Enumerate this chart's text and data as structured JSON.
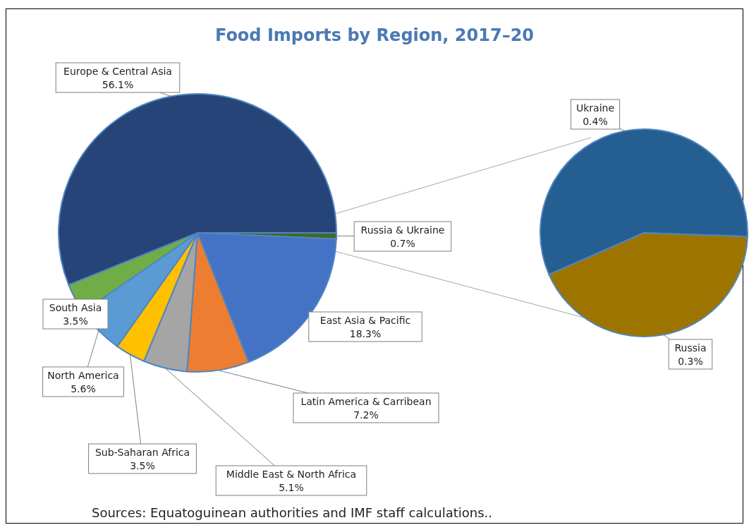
{
  "chart_data": [
    {
      "type": "pie",
      "title": "Food Imports by Region, 2017–20",
      "categories": [
        "Russia & Ukraine",
        "East Asia & Pacific",
        "Latin America & Carribean",
        "Middle East & North Africa",
        "Sub-Saharan Africa",
        "North America",
        "South Asia",
        "Europe & Central Asia"
      ],
      "values": [
        0.7,
        18.3,
        7.2,
        5.1,
        3.5,
        5.6,
        3.5,
        56.1
      ],
      "colors": [
        "#43682b",
        "#4472c4",
        "#ed7d31",
        "#a5a5a5",
        "#ffc000",
        "#5b9bd5",
        "#70ad47",
        "#264478"
      ],
      "value_labels": [
        "0.7%",
        "18.3%",
        "7.2%",
        "5.1%",
        "3.5%",
        "5.6%",
        "3.5%",
        "56.1%"
      ],
      "annotations": [
        "Sources: Equatoguinean authorities and IMF staff calculations.."
      ]
    },
    {
      "type": "pie",
      "categories": [
        "Ukraine",
        "Russia"
      ],
      "values": [
        0.4,
        0.3
      ],
      "colors": [
        "#255e91",
        "#9e7400"
      ],
      "value_labels": [
        "0.4%",
        "0.3%"
      ]
    }
  ]
}
